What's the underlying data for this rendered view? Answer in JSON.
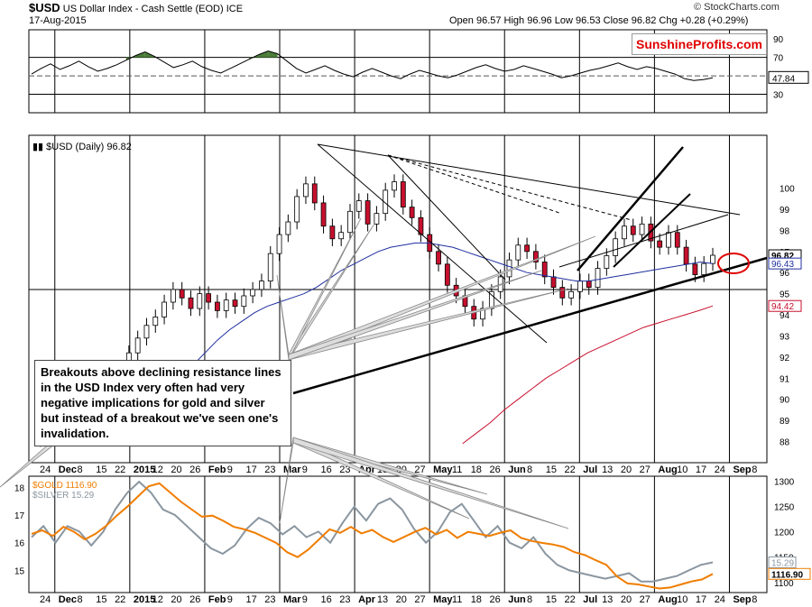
{
  "header": {
    "symbol": "$USD",
    "name": "US Dollar Index - Cash Settle (EOD)",
    "exchange": "ICE",
    "date": "17-Aug-2015",
    "quote": "Open 96.57  High 96.96  Low 96.53  Close 96.82  Chg +0.28 (+0.29%)",
    "copyright": "© StockCharts.com"
  },
  "brand": "SunshineProfits.com",
  "annotation": "Breakouts above declining resistance lines in the USD Index very often had very negative implications for gold and silver but instead of a breakout we've seen one's invalidation.",
  "colors": {
    "usd": "#000000",
    "ma50": "#1f2fa0",
    "ma200": "#c8102e",
    "gold": "#f07d00",
    "silver": "#8a96a0",
    "rsi_fill": "#4b7d3a",
    "highlight": "#e00000"
  },
  "chart_data": [
    {
      "type": "line",
      "panel": "RSI",
      "value_label": "47.84",
      "ylim": [
        10,
        100
      ],
      "yticks": [
        30,
        70,
        90
      ],
      "series": [
        {
          "values": [
            52,
            58,
            63,
            57,
            61,
            66,
            60,
            55,
            58,
            62,
            67,
            72,
            76,
            71,
            65,
            59,
            62,
            66,
            60,
            56,
            53,
            58,
            63,
            68,
            73,
            77,
            74,
            66,
            58,
            53,
            57,
            61,
            56,
            52,
            49,
            54,
            58,
            54,
            50,
            47,
            52,
            56,
            53,
            50,
            48,
            51,
            55,
            59,
            62,
            58,
            55,
            57,
            61,
            58,
            55,
            52,
            48,
            50,
            53,
            56,
            58,
            61,
            64,
            60,
            57,
            60,
            58,
            55,
            52,
            47,
            45,
            46,
            47.84
          ]
        }
      ]
    },
    {
      "type": "line",
      "panel": "$USD (Daily) 96.82",
      "x_labels": [
        "24",
        "Dec",
        "8",
        "15",
        "22",
        "2015",
        "12",
        "20",
        "26",
        "Feb",
        "9",
        "17",
        "23",
        "Mar",
        "9",
        "16",
        "23",
        "Apr",
        "13",
        "20",
        "27",
        "May",
        "11",
        "18",
        "26",
        "Jun",
        "8",
        "15",
        "22",
        "Jul",
        "13",
        "20",
        "27",
        "Aug",
        "10",
        "17",
        "24",
        "Sep",
        "8"
      ],
      "ylim": [
        87,
        102.5
      ],
      "yticks": [
        88,
        89,
        90,
        91,
        92,
        93,
        94,
        95,
        96,
        97,
        98,
        99,
        100
      ],
      "value_labels": [
        "96.82",
        "96.43",
        "94.42"
      ],
      "series": [
        {
          "name": "$USD",
          "values": [
            88.1,
            88.6,
            88.9,
            89.5,
            89.0,
            89.8,
            90.2,
            90.6,
            90.0,
            90.8,
            91.4,
            92.2,
            92.9,
            93.5,
            93.9,
            94.6,
            95.2,
            94.8,
            94.3,
            95.0,
            94.6,
            94.2,
            94.7,
            94.4,
            94.9,
            95.2,
            95.6,
            96.9,
            97.8,
            98.4,
            99.6,
            100.2,
            99.3,
            98.2,
            97.6,
            97.9,
            98.9,
            99.4,
            98.3,
            98.8,
            99.9,
            100.3,
            99.1,
            98.6,
            97.8,
            97.0,
            96.4,
            95.4,
            94.9,
            94.4,
            93.8,
            94.3,
            95.1,
            95.8,
            96.6,
            97.3,
            97.0,
            96.5,
            95.8,
            95.3,
            94.8,
            95.1,
            95.6,
            95.3,
            96.2,
            96.8,
            97.6,
            98.2,
            97.8,
            98.3,
            97.5,
            97.2,
            97.9,
            97.2,
            96.4,
            95.9,
            96.43,
            96.82
          ]
        },
        {
          "name": "50-day MA",
          "values": [
            null,
            null,
            null,
            null,
            null,
            null,
            null,
            null,
            null,
            null,
            90.0,
            90.5,
            91.0,
            91.6,
            92.2,
            92.8,
            93.3,
            93.7,
            94.1,
            94.4,
            94.6,
            94.8,
            95.0,
            95.3,
            95.7,
            96.1,
            96.4,
            96.7,
            97.0,
            97.2,
            97.3,
            97.4,
            97.4,
            97.3,
            97.2,
            97.0,
            96.8,
            96.6,
            96.4,
            96.2,
            96.0,
            95.9,
            95.8,
            95.7,
            95.6,
            95.6,
            95.7,
            95.8,
            95.9,
            96.0,
            96.1,
            96.2,
            96.3,
            96.4,
            96.5,
            96.43
          ]
        },
        {
          "name": "200-day MA",
          "values": [
            null,
            null,
            null,
            null,
            null,
            null,
            null,
            null,
            null,
            null,
            null,
            null,
            null,
            null,
            null,
            null,
            null,
            null,
            null,
            null,
            null,
            null,
            null,
            null,
            null,
            null,
            null,
            null,
            null,
            null,
            null,
            87.9,
            88.4,
            88.9,
            89.5,
            90.0,
            90.5,
            91.0,
            91.4,
            91.8,
            92.2,
            92.5,
            92.8,
            93.1,
            93.4,
            93.6,
            93.8,
            94.0,
            94.2,
            94.42
          ]
        }
      ]
    },
    {
      "type": "line",
      "panel": "Gold and Silver",
      "x_labels": [
        "24",
        "Dec",
        "8",
        "15",
        "22",
        "2015",
        "12",
        "20",
        "26",
        "Feb",
        "9",
        "17",
        "23",
        "Mar",
        "9",
        "16",
        "23",
        "Apr",
        "13",
        "20",
        "27",
        "May",
        "11",
        "18",
        "26",
        "Jun",
        "8",
        "15",
        "22",
        "Jul",
        "13",
        "20",
        "27",
        "Aug",
        "10",
        "17",
        "24",
        "Sep",
        "8"
      ],
      "yticks_left": [
        15,
        16,
        17,
        18
      ],
      "yticks_right": [
        1100,
        1150,
        1200,
        1250,
        1300
      ],
      "value_labels": [
        "15.29",
        "1116.90"
      ],
      "series": [
        {
          "name": "$GOLD 1116.90",
          "values": [
            1196,
            1203,
            1192,
            1210,
            1200,
            1185,
            1196,
            1212,
            1232,
            1250,
            1270,
            1290,
            1296,
            1278,
            1260,
            1245,
            1230,
            1232,
            1222,
            1210,
            1205,
            1198,
            1188,
            1178,
            1160,
            1150,
            1165,
            1185,
            1205,
            1198,
            1210,
            1197,
            1204,
            1190,
            1180,
            1190,
            1200,
            1208,
            1195,
            1204,
            1188,
            1200,
            1196,
            1192,
            1198,
            1203,
            1188,
            1182,
            1178,
            1175,
            1170,
            1160,
            1154,
            1144,
            1135,
            1112,
            1098,
            1096,
            1092,
            1088,
            1090,
            1096,
            1102,
            1106,
            1116.9
          ]
        },
        {
          "name": "$SILVER 15.29",
          "values": [
            16.2,
            16.6,
            16.0,
            16.6,
            16.4,
            15.9,
            16.4,
            17.2,
            17.8,
            18.2,
            17.8,
            17.2,
            17.0,
            16.6,
            16.2,
            15.8,
            15.6,
            15.9,
            16.5,
            16.9,
            16.7,
            16.3,
            16.6,
            16.2,
            16.4,
            16.0,
            16.7,
            17.3,
            16.8,
            17.4,
            17.6,
            17.2,
            16.5,
            16.0,
            16.4,
            17.1,
            17.4,
            16.8,
            16.2,
            16.6,
            16.0,
            15.8,
            16.2,
            15.6,
            15.2,
            15.0,
            14.9,
            14.8,
            14.7,
            14.8,
            14.9,
            14.6,
            14.6,
            14.7,
            14.8,
            15.0,
            15.2,
            15.29
          ]
        }
      ]
    }
  ]
}
